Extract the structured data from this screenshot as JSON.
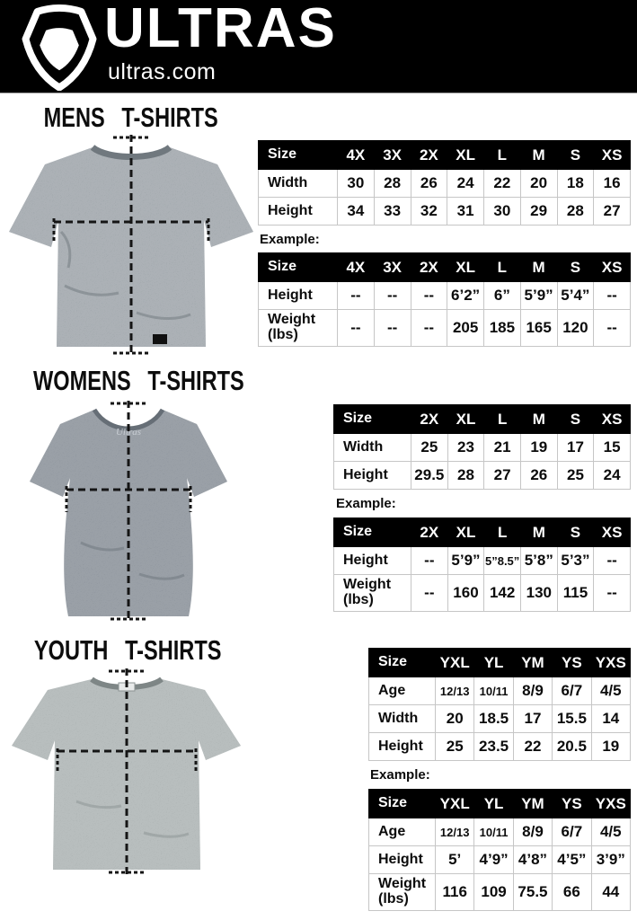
{
  "header": {
    "brand": "ULTRAS",
    "site": "ultras.com"
  },
  "colors": {
    "page_bg": "#ffffff",
    "header_bg": "#000000",
    "table_header_bg": "#000000",
    "table_border": "#c6c6c6",
    "mens_shirt": "#8c949a",
    "womens_shirt": "#7b838c",
    "youth_shirt": "#9aa2a2"
  },
  "icons": {
    "logo": "ultras-pentagon-shield"
  },
  "sections": [
    {
      "id": "mens",
      "title": "MENS T-SHIRTS",
      "example_label": "Example:",
      "size_table": {
        "header": [
          "Size",
          "4X",
          "3X",
          "2X",
          "XL",
          "L",
          "M",
          "S",
          "XS"
        ],
        "rows": [
          {
            "label": "Width",
            "values": [
              "30",
              "28",
              "26",
              "24",
              "22",
              "20",
              "18",
              "16"
            ]
          },
          {
            "label": "Height",
            "values": [
              "34",
              "33",
              "32",
              "31",
              "30",
              "29",
              "28",
              "27"
            ]
          }
        ]
      },
      "example_table": {
        "header": [
          "Size",
          "4X",
          "3X",
          "2X",
          "XL",
          "L",
          "M",
          "S",
          "XS"
        ],
        "rows": [
          {
            "label": "Height",
            "values": [
              "--",
              "--",
              "--",
              "6’2”",
              "6”",
              "5’9”",
              "5’4”",
              "--"
            ]
          },
          {
            "label": "Weight (lbs)",
            "values": [
              "--",
              "--",
              "--",
              "205",
              "185",
              "165",
              "120",
              "--"
            ]
          }
        ]
      }
    },
    {
      "id": "womens",
      "title": "WOMENS T-SHIRTS",
      "example_label": "Example:",
      "size_table": {
        "header": [
          "Size",
          "2X",
          "XL",
          "L",
          "M",
          "S",
          "XS"
        ],
        "rows": [
          {
            "label": "Width",
            "values": [
              "25",
              "23",
              "21",
              "19",
              "17",
              "15"
            ]
          },
          {
            "label": "Height",
            "values": [
              "29.5",
              "28",
              "27",
              "26",
              "25",
              "24"
            ]
          }
        ]
      },
      "example_table": {
        "header": [
          "Size",
          "2X",
          "XL",
          "L",
          "M",
          "S",
          "XS"
        ],
        "rows": [
          {
            "label": "Height",
            "values": [
              "--",
              "5’9”",
              "5”8.5”",
              "5’8”",
              "5’3”",
              "--"
            ]
          },
          {
            "label": "Weight (lbs)",
            "values": [
              "--",
              "160",
              "142",
              "130",
              "115",
              "--"
            ]
          }
        ]
      }
    },
    {
      "id": "youth",
      "title": "YOUTH T-SHIRTS",
      "example_label": "Example:",
      "size_table": {
        "header": [
          "Size",
          "YXL",
          "YL",
          "YM",
          "YS",
          "YXS"
        ],
        "rows": [
          {
            "label": "Age",
            "values": [
              "12/13",
              "10/11",
              "8/9",
              "6/7",
              "4/5"
            ]
          },
          {
            "label": "Width",
            "values": [
              "20",
              "18.5",
              "17",
              "15.5",
              "14"
            ]
          },
          {
            "label": "Height",
            "values": [
              "25",
              "23.5",
              "22",
              "20.5",
              "19"
            ]
          }
        ]
      },
      "example_table": {
        "header": [
          "Size",
          "YXL",
          "YL",
          "YM",
          "YS",
          "YXS"
        ],
        "rows": [
          {
            "label": "Age",
            "values": [
              "12/13",
              "10/11",
              "8/9",
              "6/7",
              "4/5"
            ]
          },
          {
            "label": "Height",
            "values": [
              "5’",
              "4’9”",
              "4’8”",
              "4’5”",
              "3’9”"
            ]
          },
          {
            "label": "Weight (lbs)",
            "values": [
              "116",
              "109",
              "75.5",
              "66",
              "44"
            ]
          }
        ]
      }
    }
  ]
}
